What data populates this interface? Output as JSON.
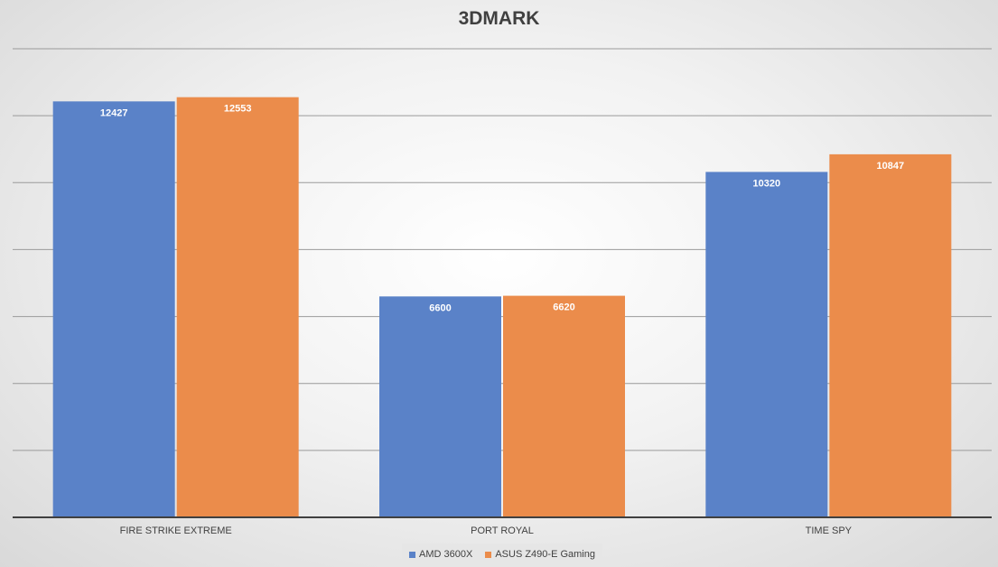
{
  "chart_data": {
    "type": "bar",
    "title": "3DMARK",
    "categories": [
      "FIRE STRIKE EXTREME",
      "PORT ROYAL",
      "TIME SPY"
    ],
    "series": [
      {
        "name": "AMD 3600X",
        "values": [
          12427,
          6600,
          10320
        ],
        "color": "#5a82c8"
      },
      {
        "name": "ASUS Z490-E Gaming",
        "values": [
          12553,
          6620,
          10847
        ],
        "color": "#eb8c4b"
      }
    ],
    "ylim": [
      0,
      14000
    ],
    "y_tick_step": 2000,
    "y_axis_labels_shown": false,
    "grid": true,
    "data_labels": true,
    "legend": "bottom"
  }
}
